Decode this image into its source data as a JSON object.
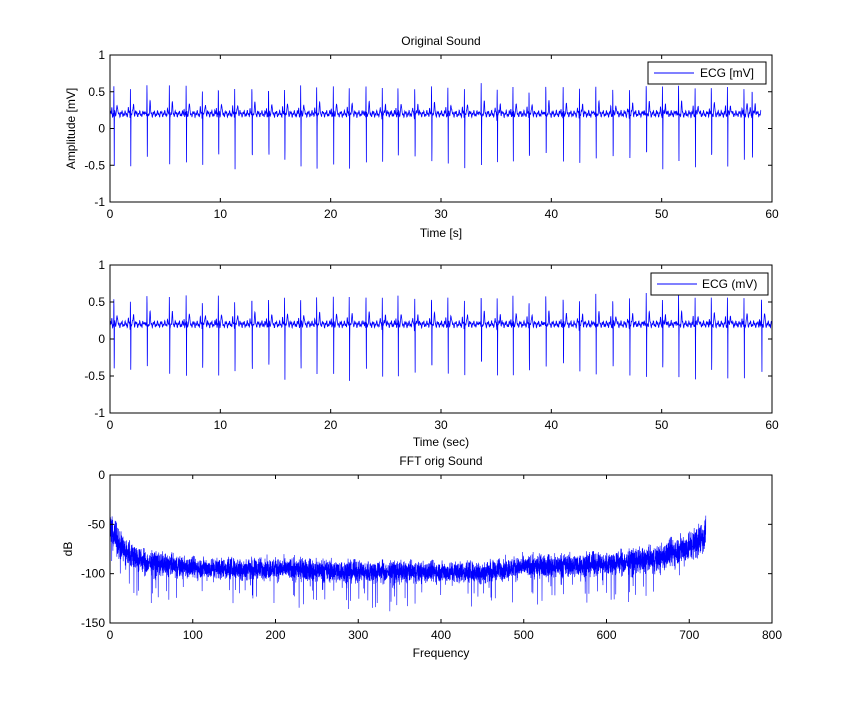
{
  "figure": {
    "background": "#ffffff",
    "line_color": "#0000ff",
    "axes_color": "#000000"
  },
  "chart_data": [
    {
      "type": "line",
      "title": "Original Sound",
      "xlabel": "Time [s]",
      "ylabel": "Amplitude [mV]",
      "xlim": [
        0,
        60
      ],
      "ylim": [
        -1,
        1
      ],
      "xticks": [
        0,
        10,
        20,
        30,
        40,
        50,
        60
      ],
      "yticks": [
        -1,
        -0.5,
        0,
        0.5,
        1
      ],
      "xtick_labels": [
        "0",
        "10",
        "20",
        "30",
        "40",
        "50",
        "60"
      ],
      "ytick_labels": [
        "-1",
        "-0.5",
        "0",
        "0.5",
        "1"
      ],
      "grid": false,
      "legend": {
        "position": "top-right",
        "entries": [
          "ECG [mV]"
        ]
      },
      "signal": {
        "kind": "ecg",
        "x_end": 59,
        "beat_times": [
          0.35,
          1.85,
          3.35,
          5.38,
          6.9,
          8.37,
          9.82,
          11.3,
          12.86,
          14.37,
          15.82,
          17.28,
          18.73,
          20.24,
          21.68,
          23.2,
          24.68,
          26.1,
          27.62,
          29.14,
          30.62,
          32.12,
          33.64,
          35.09,
          36.52,
          37.98,
          39.5,
          41.07,
          42.55,
          44.03,
          45.57,
          47.09,
          48.6,
          50.07,
          51.53,
          53.03,
          54.5,
          55.96,
          57.46,
          58.2
        ],
        "baseline": 0.2,
        "r_peak": 0.58,
        "s_trough": -0.52,
        "t_peak": 0.34
      }
    },
    {
      "type": "line",
      "title": "",
      "xlabel": "Time (sec)",
      "ylabel": "",
      "xlim": [
        0,
        60
      ],
      "ylim": [
        -1,
        1
      ],
      "xticks": [
        0,
        10,
        20,
        30,
        40,
        50,
        60
      ],
      "yticks": [
        -1,
        -0.5,
        0,
        0.5,
        1
      ],
      "xtick_labels": [
        "0",
        "10",
        "20",
        "30",
        "40",
        "50",
        "60"
      ],
      "ytick_labels": [
        "-1",
        "-0.5",
        "0",
        "0.5",
        "1"
      ],
      "grid": false,
      "legend": {
        "position": "top-right",
        "entries": [
          "ECG (mV)"
        ]
      },
      "signal": {
        "kind": "ecg",
        "x_end": 60,
        "beat_times": [
          0.35,
          1.85,
          3.35,
          5.38,
          6.9,
          8.37,
          9.82,
          11.3,
          12.86,
          14.37,
          15.82,
          17.28,
          18.73,
          20.24,
          21.68,
          23.2,
          24.68,
          26.1,
          27.62,
          29.14,
          30.62,
          32.12,
          33.64,
          35.09,
          36.52,
          37.98,
          39.5,
          41.07,
          42.55,
          44.03,
          45.57,
          47.09,
          48.6,
          50.07,
          51.53,
          53.03,
          54.5,
          55.96,
          57.46,
          59.05
        ],
        "baseline": 0.2,
        "r_peak": 0.58,
        "s_trough": -0.52,
        "t_peak": 0.34
      }
    },
    {
      "type": "line",
      "title": "FFT orig Sound",
      "xlabel": "Frequency",
      "ylabel": "dB",
      "xlim": [
        0,
        800
      ],
      "ylim": [
        -150,
        0
      ],
      "xticks": [
        0,
        100,
        200,
        300,
        400,
        500,
        600,
        700,
        800
      ],
      "yticks": [
        -150,
        -100,
        -50,
        0
      ],
      "xtick_labels": [
        "0",
        "100",
        "200",
        "300",
        "400",
        "500",
        "600",
        "700",
        "800"
      ],
      "ytick_labels": [
        "-150",
        "-100",
        "-50",
        "0"
      ],
      "grid": false,
      "legend": null,
      "signal": {
        "kind": "spectrum",
        "x_end": 720,
        "envelope": [
          {
            "x": 0,
            "mean": -55,
            "spread": 22
          },
          {
            "x": 15,
            "mean": -75,
            "spread": 22
          },
          {
            "x": 40,
            "mean": -88,
            "spread": 18
          },
          {
            "x": 100,
            "mean": -94,
            "spread": 16
          },
          {
            "x": 200,
            "mean": -95,
            "spread": 16
          },
          {
            "x": 300,
            "mean": -98,
            "spread": 16
          },
          {
            "x": 450,
            "mean": -98,
            "spread": 16
          },
          {
            "x": 500,
            "mean": -93,
            "spread": 16
          },
          {
            "x": 600,
            "mean": -90,
            "spread": 17
          },
          {
            "x": 660,
            "mean": -85,
            "spread": 20
          },
          {
            "x": 705,
            "mean": -70,
            "spread": 24
          },
          {
            "x": 720,
            "mean": -60,
            "spread": 26
          }
        ]
      }
    }
  ]
}
